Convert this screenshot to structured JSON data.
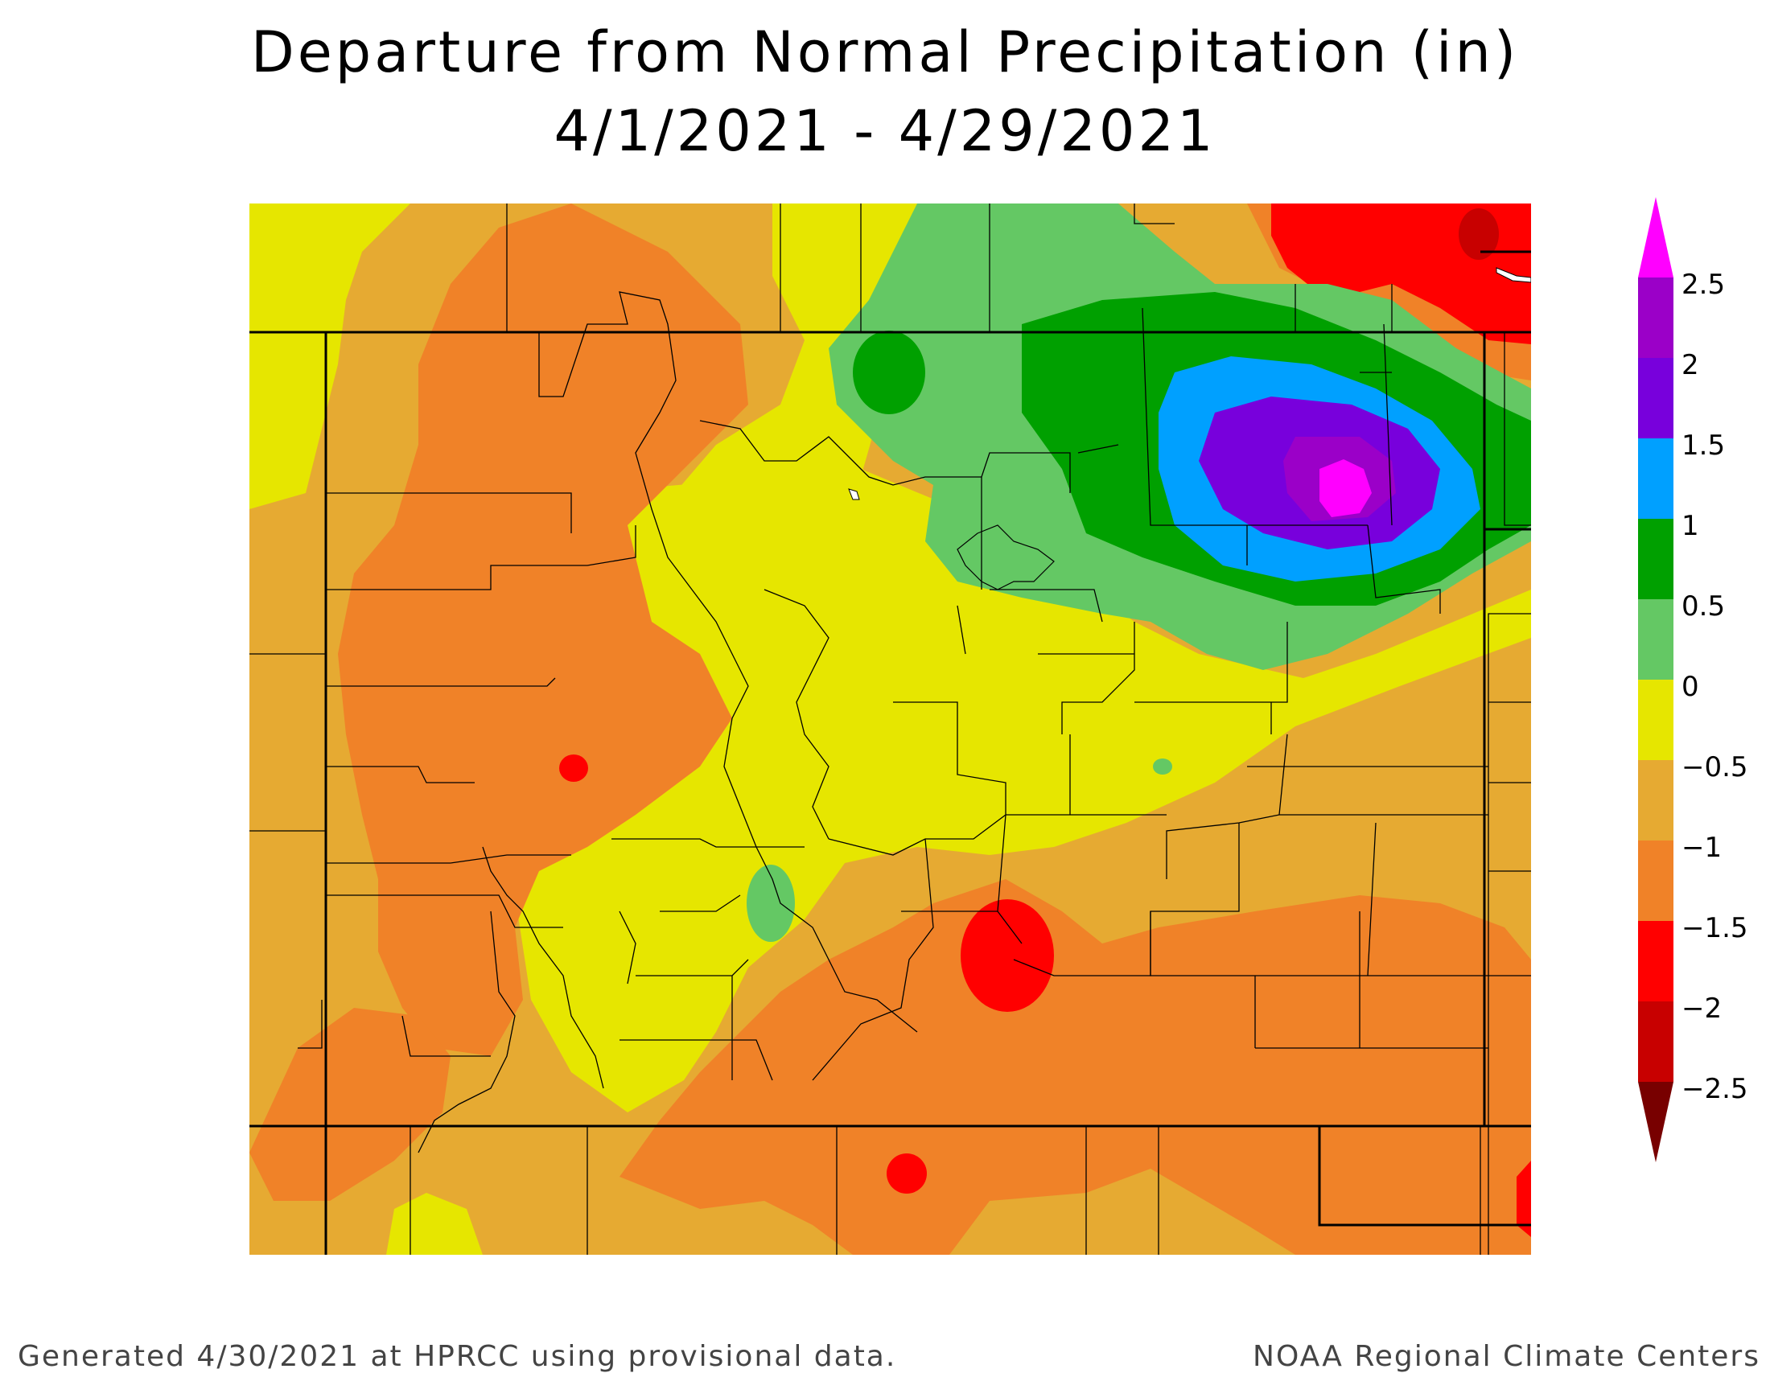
{
  "title": {
    "line1": "Departure from Normal Precipitation (in)",
    "line2": "4/1/2021 - 4/29/2021"
  },
  "legend": {
    "labels": [
      "2.5",
      "2",
      "1.5",
      "1",
      "0.5",
      "0",
      "−0.5",
      "−1",
      "−1.5",
      "−2",
      "−2.5"
    ],
    "bins": [
      {
        "from": 2.5,
        "to": 3.0,
        "color": "#ff00ff"
      },
      {
        "from": 2.0,
        "to": 2.5,
        "color": "#9b00c8"
      },
      {
        "from": 1.5,
        "to": 2.0,
        "color": "#7800dc"
      },
      {
        "from": 1.0,
        "to": 1.5,
        "color": "#00a0ff"
      },
      {
        "from": 0.5,
        "to": 1.0,
        "color": "#00a000"
      },
      {
        "from": 0.0,
        "to": 0.5,
        "color": "#64c864"
      },
      {
        "from": -0.5,
        "to": 0.0,
        "color": "#e6e600"
      },
      {
        "from": -1.0,
        "to": -0.5,
        "color": "#e6aa32"
      },
      {
        "from": -1.5,
        "to": -1.0,
        "color": "#f08228"
      },
      {
        "from": -2.0,
        "to": -1.5,
        "color": "#ff0000"
      },
      {
        "from": -2.5,
        "to": -2.0,
        "color": "#c80000"
      },
      {
        "from": -3.0,
        "to": -2.5,
        "color": "#780000"
      }
    ]
  },
  "footer": {
    "left": "Generated 4/30/2021 at HPRCC using provisional data.",
    "right": "NOAA Regional Climate Centers"
  }
}
